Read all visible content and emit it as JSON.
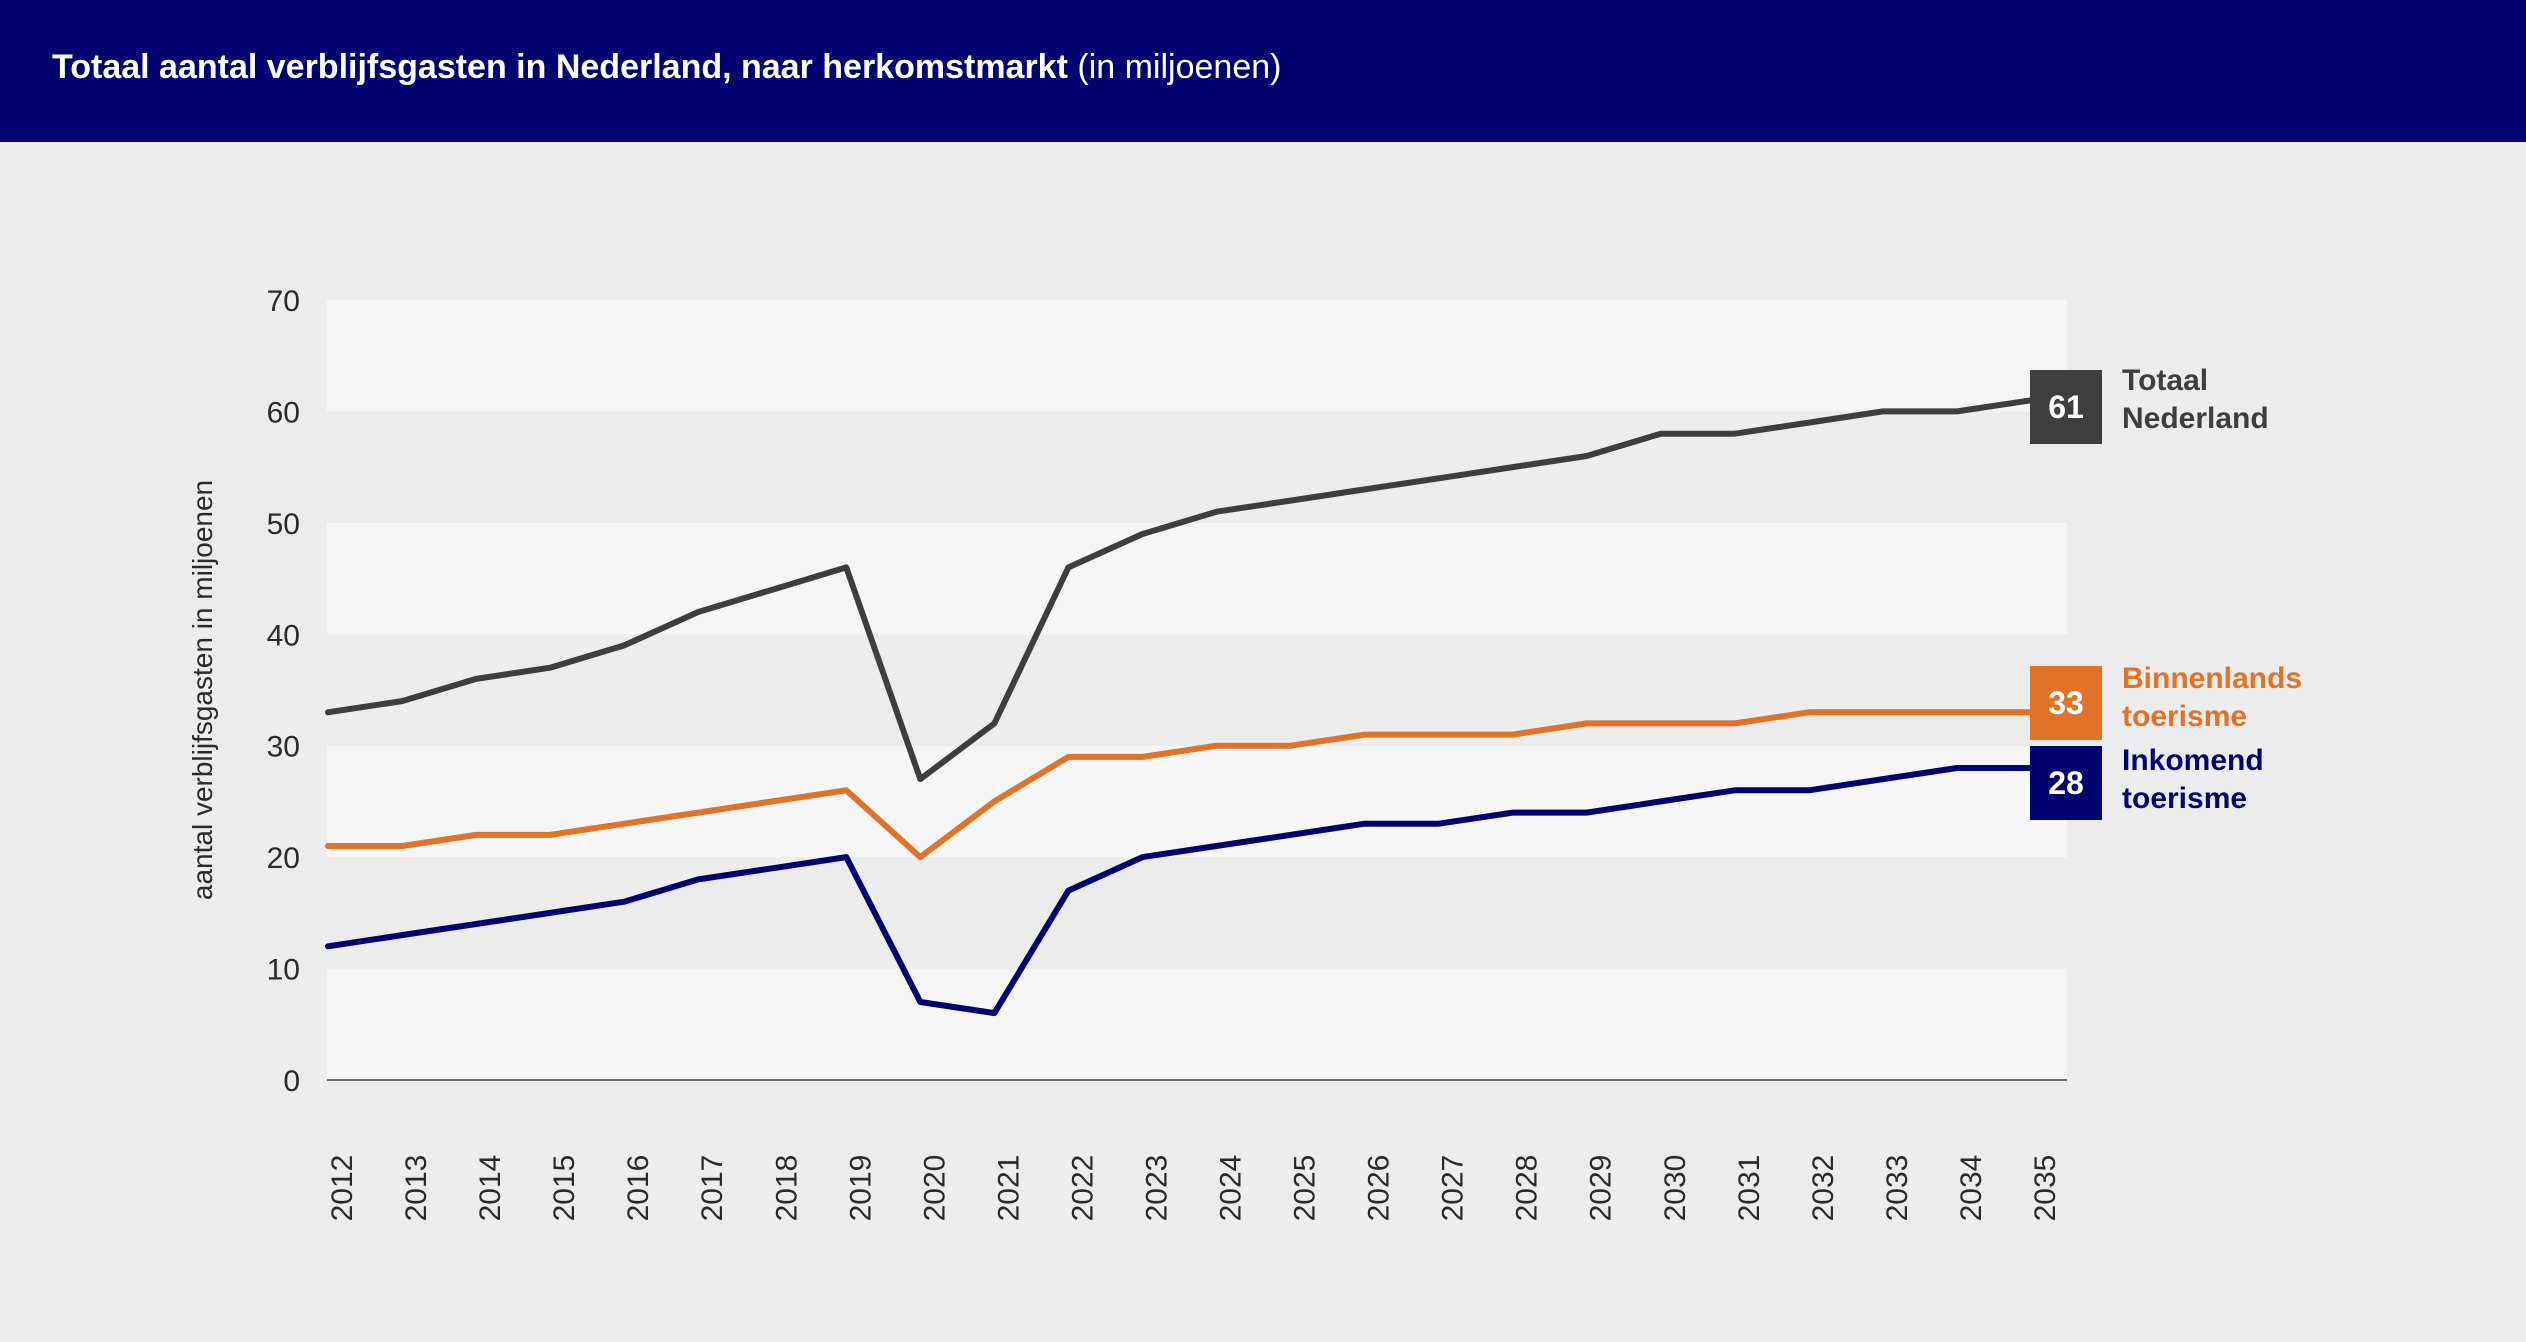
{
  "header": {
    "title": "Totaal aantal verblijfsgasten in Nederland, naar herkomstmarkt",
    "unit": "(in miljoenen)"
  },
  "colors": {
    "header_bg": "#020370",
    "totaal": "#3e3e3e",
    "binnenlands": "#e07328",
    "inkomend": "#020370"
  },
  "chart_data": {
    "type": "line",
    "title": "Totaal aantal verblijfsgasten in Nederland, naar herkomstmarkt (in miljoenen)",
    "ylabel": "aantal verblijfsgasten in miljoenen",
    "xlabel": "",
    "ylim": [
      0,
      70
    ],
    "yticks": [
      0,
      10,
      20,
      30,
      40,
      50,
      60,
      70
    ],
    "grid": "alternating horizontal bands",
    "categories": [
      "2012",
      "2013",
      "2014",
      "2015",
      "2016",
      "2017",
      "2018",
      "2019",
      "2020",
      "2021",
      "2022",
      "2023",
      "2024",
      "2025",
      "2026",
      "2027",
      "2028",
      "2029",
      "2030",
      "2031",
      "2032",
      "2033",
      "2034",
      "2035"
    ],
    "series": [
      {
        "key": "totaal",
        "name": "Totaal Nederland",
        "label_lines": [
          "Totaal",
          "Nederland"
        ],
        "end_badge": "61",
        "color": "#3e3e3e",
        "values": [
          33,
          34,
          36,
          37,
          39,
          42,
          44,
          46,
          27,
          32,
          46,
          49,
          51,
          52,
          53,
          54,
          55,
          56,
          58,
          58,
          59,
          60,
          60,
          61
        ]
      },
      {
        "key": "binnenlands",
        "name": "Binnenlands toerisme",
        "label_lines": [
          "Binnenlands",
          "toerisme"
        ],
        "end_badge": "33",
        "color": "#e07328",
        "values": [
          21,
          21,
          22,
          22,
          23,
          24,
          25,
          26,
          20,
          25,
          29,
          29,
          30,
          30,
          31,
          31,
          31,
          32,
          32,
          32,
          33,
          33,
          33,
          33
        ]
      },
      {
        "key": "inkomend",
        "name": "Inkomend toerisme",
        "label_lines": [
          "Inkomend",
          "toerisme"
        ],
        "end_badge": "28",
        "color": "#020370",
        "values": [
          12,
          13,
          14,
          15,
          16,
          18,
          19,
          20,
          7,
          6,
          17,
          20,
          21,
          22,
          23,
          23,
          24,
          24,
          25,
          26,
          26,
          27,
          28,
          28
        ]
      }
    ]
  }
}
